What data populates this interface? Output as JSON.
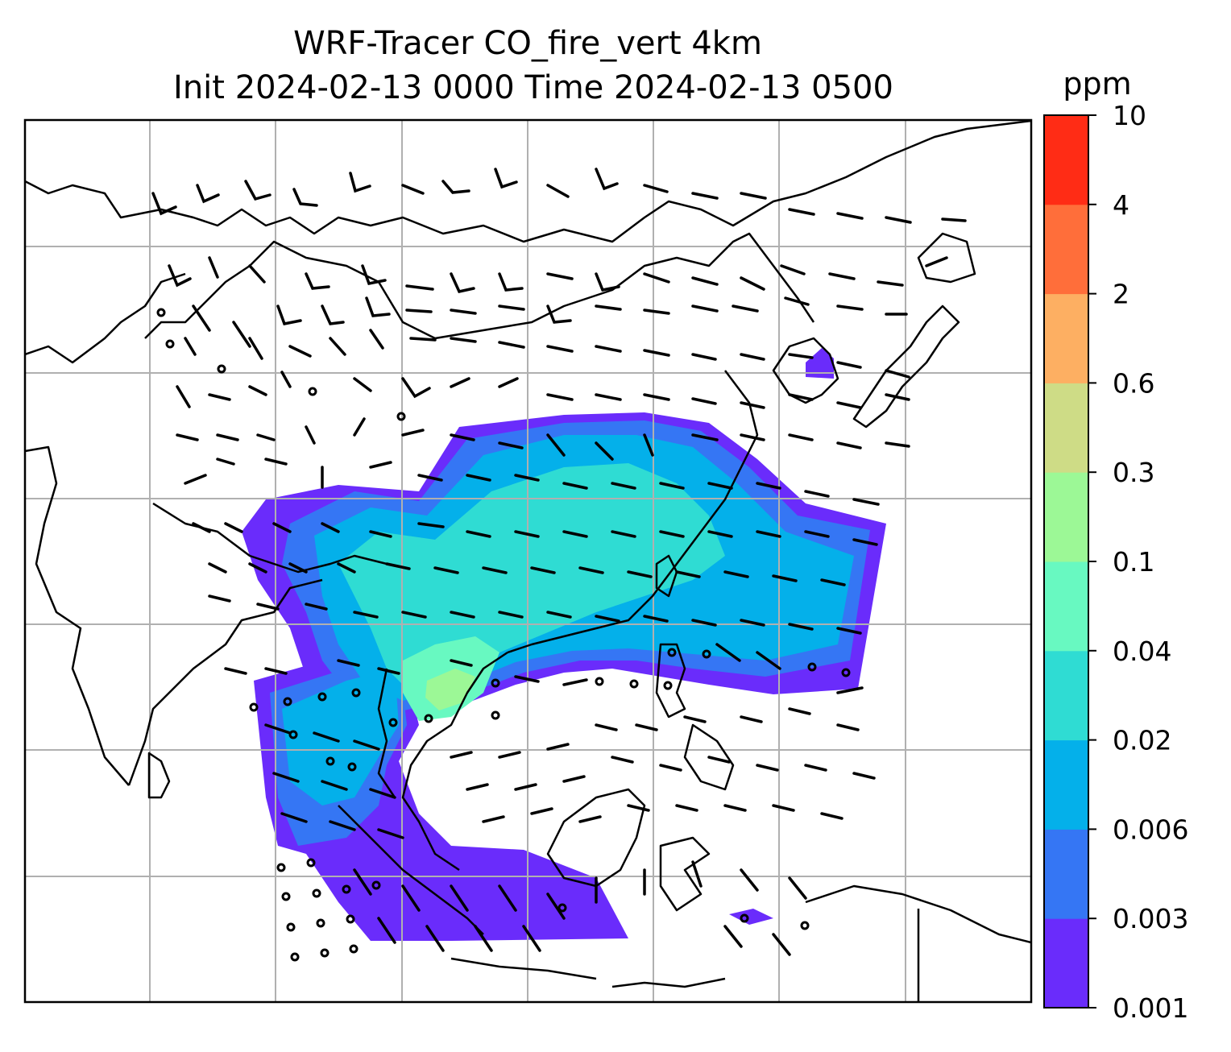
{
  "title": {
    "line1": "WRF-Tracer CO_fire_vert 4km",
    "line2": "Init 2024-02-13 0000 Time 2024-02-13 0500"
  },
  "colorbar": {
    "unit": "ppm",
    "levels": [
      "0.001",
      "0.003",
      "0.006",
      "0.02",
      "0.04",
      "0.1",
      "0.3",
      "0.6",
      "2",
      "4",
      "10"
    ],
    "colors": [
      "#6a2cfb",
      "#3576f4",
      "#04b0ea",
      "#2fdcd3",
      "#68f9c1",
      "#9cf896",
      "#cedc86",
      "#fdaf62",
      "#ff6e3a",
      "#ff2c15"
    ]
  },
  "map": {
    "features": [
      "coastlines",
      "country-borders",
      "gridlines",
      "tracer-concentration",
      "wind-barbs"
    ],
    "concentration_regions": [
      {
        "name": "main-plume-band",
        "level_min": "0.003"
      },
      {
        "name": "indochina-core",
        "level_min": "0.04"
      },
      {
        "name": "southern-plume",
        "level_min": "0.001"
      }
    ]
  },
  "chart_data": {
    "type": "heatmap",
    "title": "WRF-Tracer CO_fire_vert 4km\nInit 2024-02-13 0000 Time 2024-02-13 0500",
    "colorbar_label": "ppm",
    "colorbar_ticks": [
      0.001,
      0.003,
      0.006,
      0.02,
      0.04,
      0.1,
      0.3,
      0.6,
      2,
      4,
      10
    ],
    "grid": true,
    "legend": "right"
  }
}
